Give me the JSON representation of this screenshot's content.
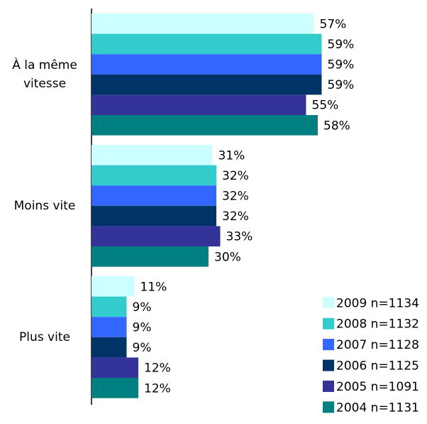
{
  "chart_data": {
    "type": "bar",
    "orientation": "horizontal",
    "categories": [
      "À la même vitesse",
      "Moins vite",
      "Plus vite"
    ],
    "series": [
      {
        "name": "2009 n=1134",
        "color": "#ccffff",
        "values": [
          57,
          31,
          11
        ],
        "value_labels": [
          "57%",
          "31%",
          "11%"
        ]
      },
      {
        "name": "2008 n=1132",
        "color": "#33cccc",
        "values": [
          59,
          32,
          9
        ],
        "value_labels": [
          "59%",
          "32%",
          "9%"
        ]
      },
      {
        "name": "2007 n=1128",
        "color": "#3366ff",
        "values": [
          59,
          32,
          9
        ],
        "value_labels": [
          "59%",
          "32%",
          "9%"
        ]
      },
      {
        "name": "2006 n=1125",
        "color": "#003366",
        "values": [
          59,
          32,
          9
        ],
        "value_labels": [
          "59%",
          "32%",
          "9%"
        ]
      },
      {
        "name": "2005 n=1091",
        "color": "#333399",
        "values": [
          55,
          33,
          12
        ],
        "value_labels": [
          "55%",
          "33%",
          "12%"
        ]
      },
      {
        "name": "2004 n=1131",
        "color": "#008080",
        "values": [
          58,
          30,
          12
        ],
        "value_labels": [
          "58%",
          "30%",
          "12%"
        ]
      }
    ],
    "legend": "lower right"
  }
}
